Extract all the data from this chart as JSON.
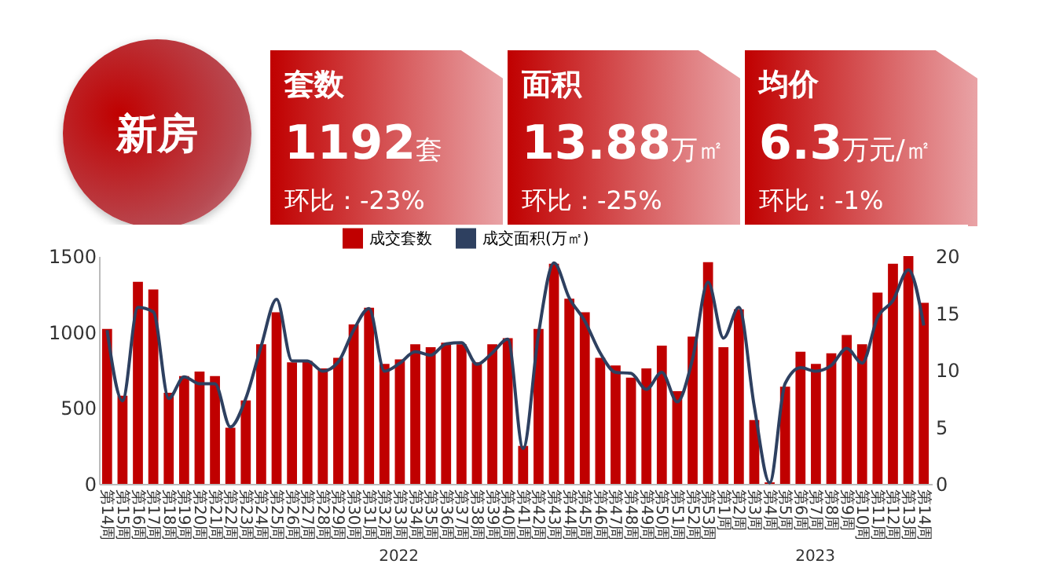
{
  "chart_data": [
    {
      "type": "other",
      "title": "新房",
      "annotations": [
        "套数",
        "1192套",
        "环比：-23%",
        "面积",
        "13.88万㎡",
        "环比：-25%",
        "均价",
        "6.3万元/㎡",
        "环比：-1%"
      ]
    },
    {
      "type": "bar",
      "categories": [
        "第14周",
        "第15周",
        "第16周",
        "第17周",
        "第18周",
        "第19周",
        "第20周",
        "第21周",
        "第22周",
        "第23周",
        "第24周",
        "第25周",
        "第26周",
        "第27周",
        "第28周",
        "第29周",
        "第30周",
        "第31周",
        "第32周",
        "第33周",
        "第34周",
        "第35周",
        "第36周",
        "第37周",
        "第38周",
        "第39周",
        "第40周",
        "第41周",
        "第42周",
        "第43周",
        "第44周",
        "第45周",
        "第46周",
        "第47周",
        "第48周",
        "第49周",
        "第50周",
        "第51周",
        "第52周",
        "第53周",
        "第1周",
        "第2周",
        "第3周",
        "第4周",
        "第5周",
        "第6周",
        "第7周",
        "第8周",
        "第9周",
        "第10周",
        "第11周",
        "第12周",
        "第13周",
        "第14周"
      ],
      "series": [
        {
          "name": "成交套数",
          "type": "bar",
          "color": "#c00000",
          "values": [
            1020,
            580,
            1330,
            1280,
            600,
            710,
            740,
            710,
            370,
            550,
            920,
            1130,
            800,
            810,
            760,
            830,
            1050,
            1160,
            790,
            820,
            920,
            900,
            930,
            920,
            800,
            920,
            960,
            250,
            1020,
            1450,
            1220,
            1130,
            830,
            780,
            700,
            760,
            910,
            610,
            970,
            1460,
            900,
            1150,
            420,
            10,
            640,
            870,
            790,
            860,
            980,
            920,
            1260,
            1450,
            1500,
            1192
          ]
        },
        {
          "name": "成交面积(万㎡)",
          "type": "line",
          "axis": "y2",
          "color": "#2e4060",
          "values": [
            13.5,
            7.3,
            15.5,
            15.1,
            7.5,
            9.4,
            8.8,
            8.8,
            5.0,
            7.5,
            12.1,
            16.2,
            10.8,
            10.8,
            9.9,
            10.7,
            13.5,
            15.4,
            9.9,
            10.6,
            11.6,
            11.3,
            12.3,
            12.4,
            10.5,
            11.5,
            12.7,
            3.1,
            13.2,
            19.4,
            16.3,
            14.3,
            11.5,
            9.8,
            9.7,
            8.3,
            9.8,
            7.2,
            11.0,
            17.7,
            12.8,
            15.5,
            6.8,
            0.1,
            8.8,
            10.2,
            9.9,
            10.4,
            11.9,
            10.6,
            14.6,
            16.1,
            18.8,
            13.9
          ]
        }
      ],
      "ylim": [
        0,
        1500
      ],
      "yticks": [
        0,
        500,
        1000,
        1500
      ],
      "y2lim": [
        0,
        20
      ],
      "y2ticks": [
        0,
        5,
        10,
        15,
        20
      ],
      "legend": "top",
      "annotations": [
        "2022",
        "2023"
      ]
    }
  ]
}
